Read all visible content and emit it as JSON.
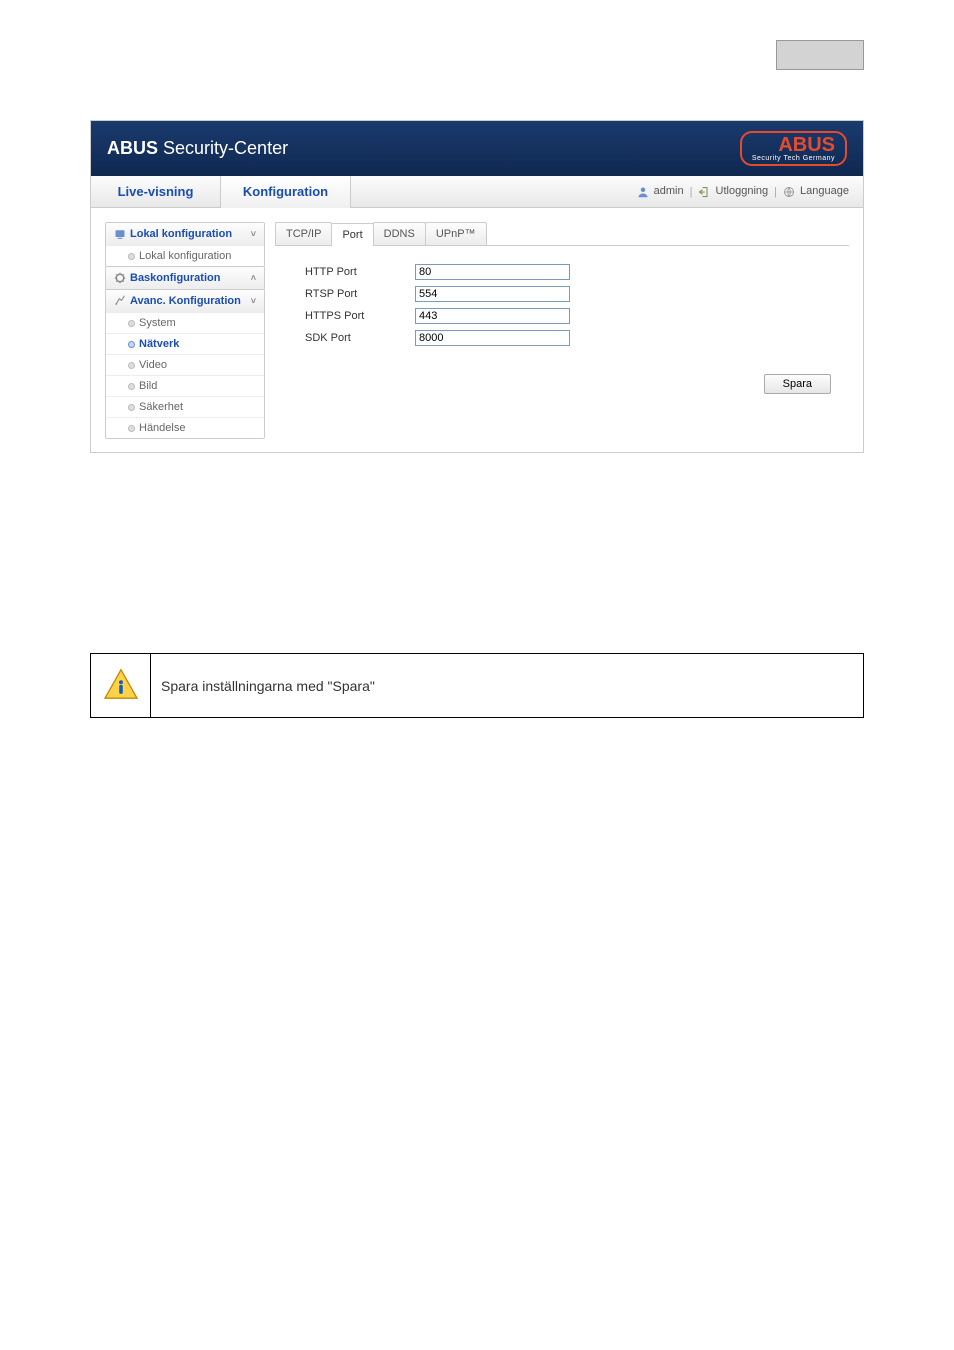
{
  "header": {
    "title_bold": "ABUS",
    "title_thin": "Security-Center",
    "logo_text": "ABUS",
    "logo_sub": "Security Tech Germany"
  },
  "nav": {
    "tabs": [
      {
        "label": "Live-visning",
        "active": false
      },
      {
        "label": "Konfiguration",
        "active": true
      }
    ],
    "user": "admin",
    "logout": "Utloggning",
    "language": "Language"
  },
  "sidebar": {
    "sections": [
      {
        "label": "Lokal konfiguration",
        "expanded": true,
        "chev": "˅",
        "items": [
          {
            "label": "Lokal konfiguration",
            "selected": false
          }
        ]
      },
      {
        "label": "Baskonfiguration",
        "expanded": false,
        "chev": "˄",
        "items": []
      },
      {
        "label": "Avanc. Konfiguration",
        "expanded": true,
        "chev": "˅",
        "items": [
          {
            "label": "System",
            "selected": false
          },
          {
            "label": "Nätverk",
            "selected": true
          },
          {
            "label": "Video",
            "selected": false
          },
          {
            "label": "Bild",
            "selected": false
          },
          {
            "label": "Säkerhet",
            "selected": false
          },
          {
            "label": "Händelse",
            "selected": false
          }
        ]
      }
    ]
  },
  "content_tabs": [
    {
      "label": "TCP/IP",
      "active": false
    },
    {
      "label": "Port",
      "active": true
    },
    {
      "label": "DDNS",
      "active": false
    },
    {
      "label": "UPnP™",
      "active": false
    }
  ],
  "form": {
    "rows": [
      {
        "label": "HTTP Port",
        "value": "80"
      },
      {
        "label": "RTSP Port",
        "value": "554"
      },
      {
        "label": "HTTPS Port",
        "value": "443"
      },
      {
        "label": "SDK Port",
        "value": "8000"
      }
    ],
    "save_label": "Spara"
  },
  "note": {
    "text": "Spara inställningarna med \"Spara\""
  },
  "colors": {
    "link_blue": "#1a4db3",
    "logo_red": "#e84b2c",
    "header_bg": "#14336a"
  }
}
